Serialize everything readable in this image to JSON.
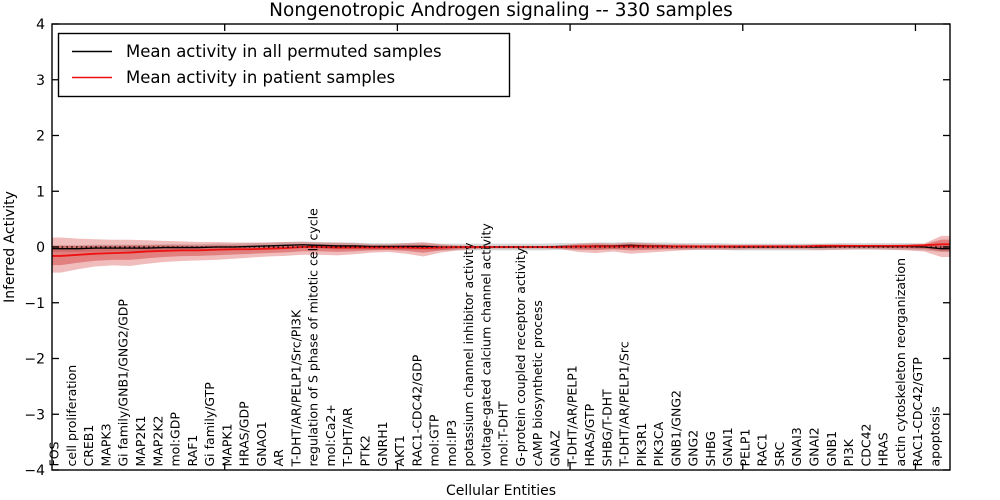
{
  "title": "Nongenotropic Androgen signaling -- 330 samples",
  "axes": {
    "xlabel": "Cellular Entities",
    "ylabel": "Inferred Activity",
    "y_tick_labels": [
      "4",
      "3",
      "2",
      "1",
      "0",
      "−1",
      "−2",
      "−3",
      "−4"
    ]
  },
  "legend": {
    "entries": [
      {
        "label": "Mean activity in all permuted samples",
        "color": "#000000"
      },
      {
        "label": "Mean activity in patient samples",
        "color": "#ee1111"
      }
    ]
  },
  "colors": {
    "background": "#ffffff",
    "frame": "#000000",
    "permuted_line": "#000000",
    "patient_line": "#ee1111",
    "patient_band": "#cc2222",
    "permuted_band": "#999999",
    "zero_line": "#000000"
  },
  "chart_data": {
    "type": "line",
    "title": "Nongenotropic Androgen signaling -- 330 samples",
    "xlabel": "Cellular Entities",
    "ylabel": "Inferred Activity",
    "ylim": [
      -4,
      4
    ],
    "y_ticks": [
      4,
      3,
      2,
      1,
      0,
      -1,
      -2,
      -3,
      -4
    ],
    "x_tick_positions": [
      10,
      20,
      30,
      40,
      50
    ],
    "grid": false,
    "legend_position": "upper left",
    "zero_reference_line": true,
    "categories": [
      "FOS",
      "cell proliferation",
      "CREB1",
      "MAPK3",
      "Gi family/GNB1/GNG2/GDP",
      "MAP2K1",
      "MAP2K2",
      "mol:GDP",
      "RAF1",
      "Gi family/GTP",
      "MAPK1",
      "HRAS/GDP",
      "GNAO1",
      "AR",
      "T-DHT/AR/PELP1/Src/PI3K",
      "regulation of S phase of mitotic cell cycle",
      "mol:Ca2+",
      "T-DHT/AR",
      "PTK2",
      "GNRH1",
      "AKT1",
      "RAC1-CDC42/GDP",
      "mol:GTP",
      "mol:IP3",
      "potassium channel inhibitor activity",
      "voltage-gated calcium channel activity",
      "mol:T-DHT",
      "G-protein coupled receptor activity",
      "cAMP biosynthetic process",
      "GNAZ",
      "T-DHT/AR/PELP1",
      "HRAS/GTP",
      "SHBG/T-DHT",
      "T-DHT/AR/PELP1/Src",
      "PIK3R1",
      "PIK3CA",
      "GNB1/GNG2",
      "GNG2",
      "SHBG",
      "GNAI1",
      "PELP1",
      "RAC1",
      "SRC",
      "GNAI3",
      "GNAI2",
      "GNB1",
      "PI3K",
      "CDC42",
      "HRAS",
      "actin cytoskeleton reorganization",
      "RAC1-CDC42/GTP",
      "apoptosis"
    ],
    "series": [
      {
        "name": "Mean activity in all permuted samples",
        "color": "#000000",
        "style": "solid",
        "values": [
          -0.03,
          -0.03,
          -0.02,
          -0.02,
          -0.02,
          -0.02,
          -0.01,
          -0.01,
          -0.01,
          0.0,
          0.0,
          0.01,
          0.02,
          0.03,
          0.04,
          0.03,
          0.02,
          0.02,
          0.01,
          0.01,
          0.01,
          0.01,
          0.0,
          0.0,
          0.0,
          0.0,
          0.0,
          0.0,
          0.0,
          0.01,
          0.01,
          0.02,
          0.02,
          0.03,
          0.02,
          0.02,
          0.01,
          0.01,
          0.01,
          0.0,
          0.0,
          0.0,
          0.0,
          0.0,
          0.0,
          0.01,
          0.01,
          0.01,
          0.01,
          0.01,
          0.0,
          -0.03
        ]
      },
      {
        "name": "Mean activity in patient samples",
        "color": "#ee1111",
        "style": "solid",
        "values": [
          -0.16,
          -0.14,
          -0.12,
          -0.11,
          -0.1,
          -0.08,
          -0.07,
          -0.06,
          -0.06,
          -0.05,
          -0.04,
          -0.04,
          -0.03,
          -0.02,
          0.0,
          0.0,
          -0.01,
          -0.01,
          -0.01,
          -0.01,
          -0.01,
          -0.02,
          -0.01,
          0.0,
          0.0,
          0.0,
          0.0,
          0.0,
          0.0,
          0.0,
          0.01,
          0.01,
          0.01,
          0.01,
          0.01,
          0.01,
          0.01,
          0.01,
          0.01,
          0.01,
          0.01,
          0.01,
          0.01,
          0.01,
          0.02,
          0.02,
          0.02,
          0.02,
          0.02,
          0.02,
          0.03,
          0.05
        ]
      }
    ],
    "bands": [
      {
        "name": "permuted spread",
        "color": "#999999",
        "opacity": 0.4,
        "derive": {
          "series": 0,
          "halfwidth": 0.06
        }
      },
      {
        "name": "patient spread outer",
        "color": "#cc2222",
        "opacity": 0.3,
        "hi": [
          0.17,
          0.15,
          0.14,
          0.13,
          0.13,
          0.12,
          0.11,
          0.1,
          0.09,
          0.09,
          0.08,
          0.08,
          0.08,
          0.09,
          0.09,
          0.08,
          0.08,
          0.07,
          0.05,
          0.05,
          0.07,
          0.09,
          0.05,
          0.03,
          0.02,
          0.02,
          0.02,
          0.02,
          0.02,
          0.03,
          0.06,
          0.07,
          0.06,
          0.08,
          0.07,
          0.05,
          0.05,
          0.04,
          0.04,
          0.04,
          0.04,
          0.04,
          0.04,
          0.04,
          0.05,
          0.05,
          0.04,
          0.04,
          0.04,
          0.05,
          0.06,
          0.2
        ],
        "lo": [
          -0.46,
          -0.4,
          -0.35,
          -0.33,
          -0.34,
          -0.3,
          -0.27,
          -0.25,
          -0.24,
          -0.23,
          -0.21,
          -0.19,
          -0.17,
          -0.16,
          -0.14,
          -0.14,
          -0.15,
          -0.13,
          -0.1,
          -0.09,
          -0.12,
          -0.17,
          -0.1,
          -0.06,
          -0.04,
          -0.03,
          -0.03,
          -0.03,
          -0.03,
          -0.04,
          -0.09,
          -0.11,
          -0.08,
          -0.12,
          -0.1,
          -0.08,
          -0.06,
          -0.05,
          -0.05,
          -0.05,
          -0.04,
          -0.04,
          -0.04,
          -0.04,
          -0.05,
          -0.05,
          -0.04,
          -0.04,
          -0.05,
          -0.06,
          -0.08,
          -0.18
        ]
      },
      {
        "name": "patient spread inner",
        "color": "#cc2222",
        "opacity": 0.4,
        "derive": {
          "series": 1,
          "band": 1,
          "scale": 0.55
        }
      }
    ]
  }
}
